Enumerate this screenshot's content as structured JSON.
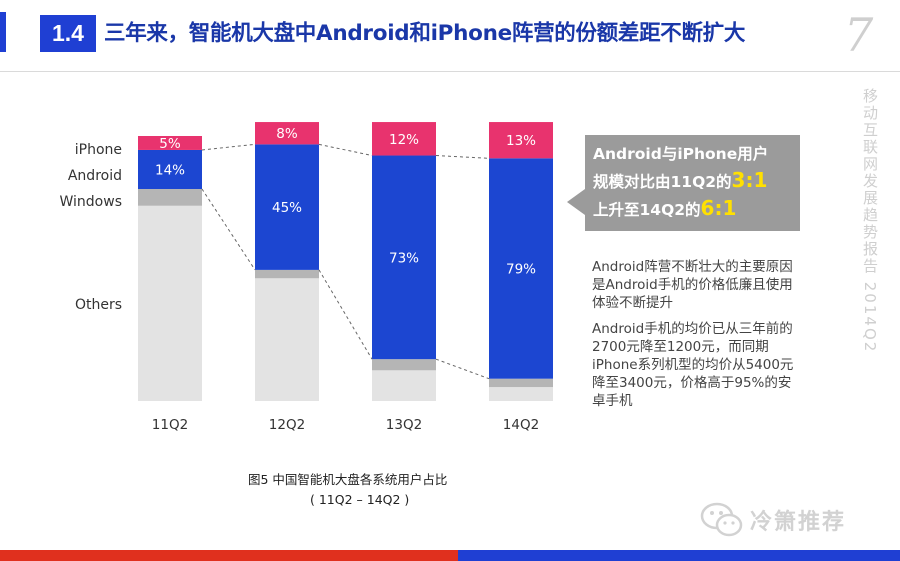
{
  "header": {
    "badge": "1.4",
    "title": "三年来，智能机大盘中Android和iPhone阵营的份额差距不断扩大",
    "page_number": "7",
    "side_text": "移动互联网发展趋势报告 2014Q2"
  },
  "colors": {
    "accent_blue": "#1f3fd3",
    "title_blue": "#1a37a8",
    "accent_red": "#e0301e",
    "iphone": "#e8336e",
    "android": "#1c46d1",
    "windows": "#b5b5b5",
    "others": "#e3e3e3"
  },
  "chart_data": {
    "type": "bar",
    "stacked": true,
    "percent_stacked": true,
    "categories": [
      "11Q2",
      "12Q2",
      "13Q2",
      "14Q2"
    ],
    "series": [
      {
        "name": "Others",
        "values": [
          70,
          44,
          11,
          5
        ],
        "label_values": [
          "",
          "",
          "",
          ""
        ]
      },
      {
        "name": "Windows",
        "values": [
          6,
          3,
          4,
          3
        ],
        "label_values": [
          "",
          "",
          "",
          ""
        ]
      },
      {
        "name": "Android",
        "values": [
          14,
          45,
          73,
          79
        ],
        "label_values": [
          "14%",
          "45%",
          "73%",
          "79%"
        ]
      },
      {
        "name": "iPhone",
        "values": [
          5,
          8,
          12,
          13
        ],
        "label_values": [
          "5%",
          "8%",
          "12%",
          "13%"
        ]
      }
    ],
    "legend_labels": [
      "iPhone",
      "Android",
      "Windows",
      "Others"
    ],
    "ylim": [
      0,
      100
    ],
    "grid": false
  },
  "callout": {
    "line1": "Android与iPhone用户",
    "line2_prefix": "规模对比由11Q2的",
    "ratio_from": "3:1",
    "line3_prefix": "上升至14Q2的",
    "ratio_to": "6:1"
  },
  "notes": [
    "Android阵营不断壮大的主要原因是Android手机的价格低廉且使用体验不断提升",
    "Android手机的均价已从三年前的2700元降至1200元，而同期iPhone系列机型的均价从5400元降至3400元，价格高于95%的安卓手机"
  ],
  "figure": {
    "caption": "图5 中国智能机大盘各系统用户占比",
    "subcaption": "( 11Q2 – 14Q2 )"
  },
  "watermark": {
    "icon": "wechat-icon",
    "text": "冷箫推荐"
  }
}
